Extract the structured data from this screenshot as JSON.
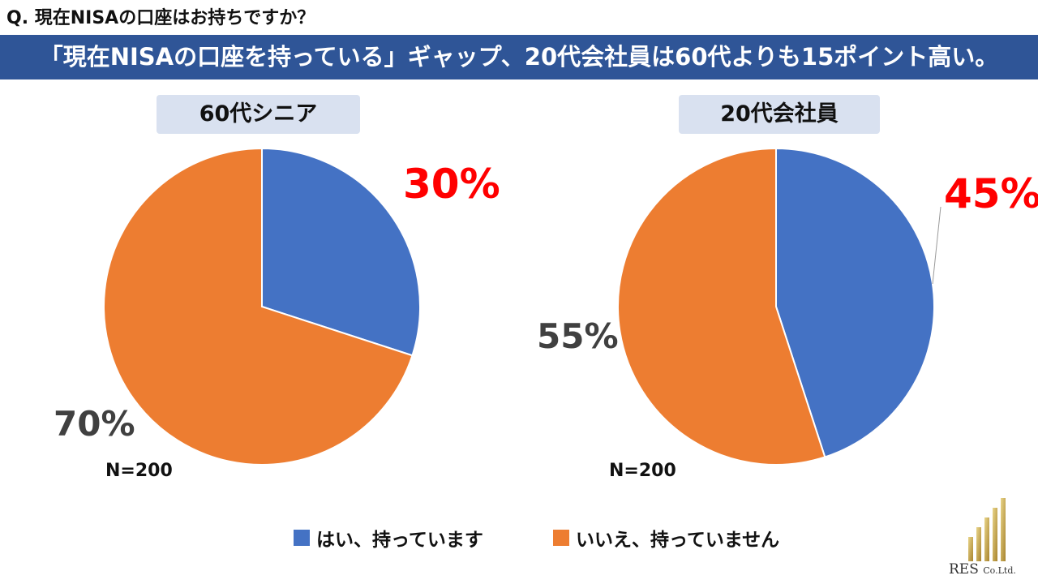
{
  "question": "Q. 現在NISAの口座はお持ちですか？",
  "banner": "「現在NISAの口座を持っている」ギャップ、20代会社員は60代よりも15ポイント高い。",
  "colors": {
    "yes": "#4472c4",
    "no": "#ed7d31",
    "highlight": "#ff0000",
    "banner": "#2f5597",
    "label_bg": "#d9e1f0"
  },
  "chart_data": [
    {
      "type": "pie",
      "title": "60代シニア",
      "slices": [
        {
          "label": "はい、持っています",
          "value": 30,
          "data_label": "30%"
        },
        {
          "label": "いいえ、持っていません",
          "value": 70,
          "data_label": "70%"
        }
      ],
      "n_label": "N=200"
    },
    {
      "type": "pie",
      "title": "20代会社員",
      "slices": [
        {
          "label": "はい、持っています",
          "value": 45,
          "data_label": "45%"
        },
        {
          "label": "いいえ、持っていません",
          "value": 55,
          "data_label": "55%"
        }
      ],
      "n_label": "N=200"
    }
  ],
  "legend": [
    {
      "label": "はい、持っています",
      "color": "#4472c4"
    },
    {
      "label": "いいえ、持っていません",
      "color": "#ed7d31"
    }
  ],
  "logo": {
    "name": "RES",
    "suffix": "Co.Ltd.",
    "icon": "gold-bars-icon"
  }
}
